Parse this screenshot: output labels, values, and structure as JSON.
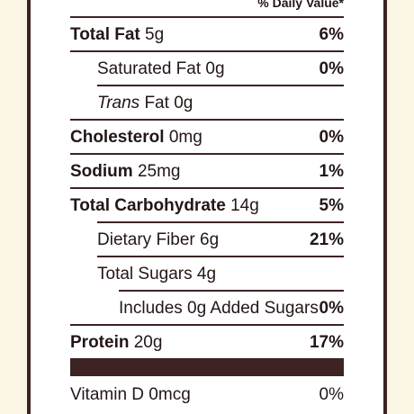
{
  "header": {
    "daily_value": "% Daily Value*"
  },
  "rows": [
    {
      "name": "Total Fat",
      "amount": "5g",
      "dv": "6%"
    },
    {
      "name": "Saturated Fat",
      "amount": "0g",
      "dv": "0%"
    },
    {
      "name_italic": "Trans",
      "name": "Fat",
      "amount": "0g",
      "dv": ""
    },
    {
      "name": "Cholesterol",
      "amount": "0mg",
      "dv": "0%"
    },
    {
      "name": "Sodium",
      "amount": "25mg",
      "dv": "1%"
    },
    {
      "name": "Total Carbohydrate",
      "amount": "14g",
      "dv": "5%"
    },
    {
      "name": "Dietary Fiber",
      "amount": "6g",
      "dv": "21%"
    },
    {
      "name": "Total Sugars",
      "amount": "4g",
      "dv": ""
    },
    {
      "name": "Includes 0g Added Sugars",
      "amount": "",
      "dv": "0%"
    },
    {
      "name": "Protein",
      "amount": "20g",
      "dv": "17%"
    },
    {
      "name": "Vitamin D",
      "amount": "0mcg",
      "dv": "0%"
    }
  ],
  "colors": {
    "ink": "#3d2323",
    "background": "#fbf6e4",
    "panel": "#ffffff"
  }
}
